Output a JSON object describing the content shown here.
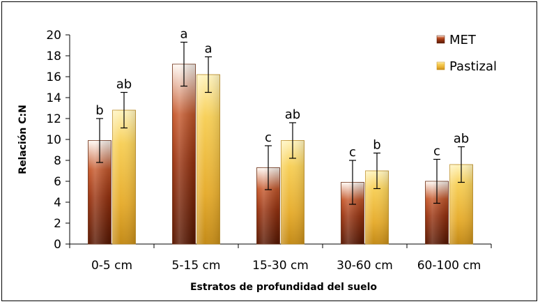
{
  "chart_data": {
    "type": "bar",
    "title": "",
    "xlabel": "Estratos de profundidad del suelo",
    "ylabel": "Relación C:N",
    "ylim": [
      0,
      20
    ],
    "yticks": [
      "0",
      "2",
      "4",
      "6",
      "8",
      "10",
      "12",
      "14",
      "16",
      "18",
      "20"
    ],
    "categories": [
      "0-5 cm",
      "5-15 cm",
      "15-30 cm",
      "30-60 cm",
      "60-100 cm"
    ],
    "series": [
      {
        "name": "MET",
        "values": [
          9.9,
          17.2,
          7.3,
          5.9,
          6.0
        ],
        "error": [
          2.1,
          2.1,
          2.1,
          2.1,
          2.1
        ],
        "letters": [
          "b",
          "a",
          "c",
          "c",
          "c"
        ],
        "color_top": "#fffaf5",
        "color_mid": "#a0391a",
        "color_bottom": "#5a1a05"
      },
      {
        "name": "Pastizal",
        "values": [
          12.8,
          16.2,
          9.9,
          7.0,
          7.6
        ],
        "error": [
          1.7,
          1.7,
          1.7,
          1.7,
          1.7
        ],
        "letters": [
          "ab",
          "a",
          "ab",
          "b",
          "ab"
        ],
        "color_top": "#fff0b0",
        "color_mid": "#f5c94a",
        "color_bottom": "#c8901a"
      }
    ],
    "legend": [
      "MET",
      "Pastizal"
    ],
    "legend_position": "top-right",
    "grid": false
  }
}
